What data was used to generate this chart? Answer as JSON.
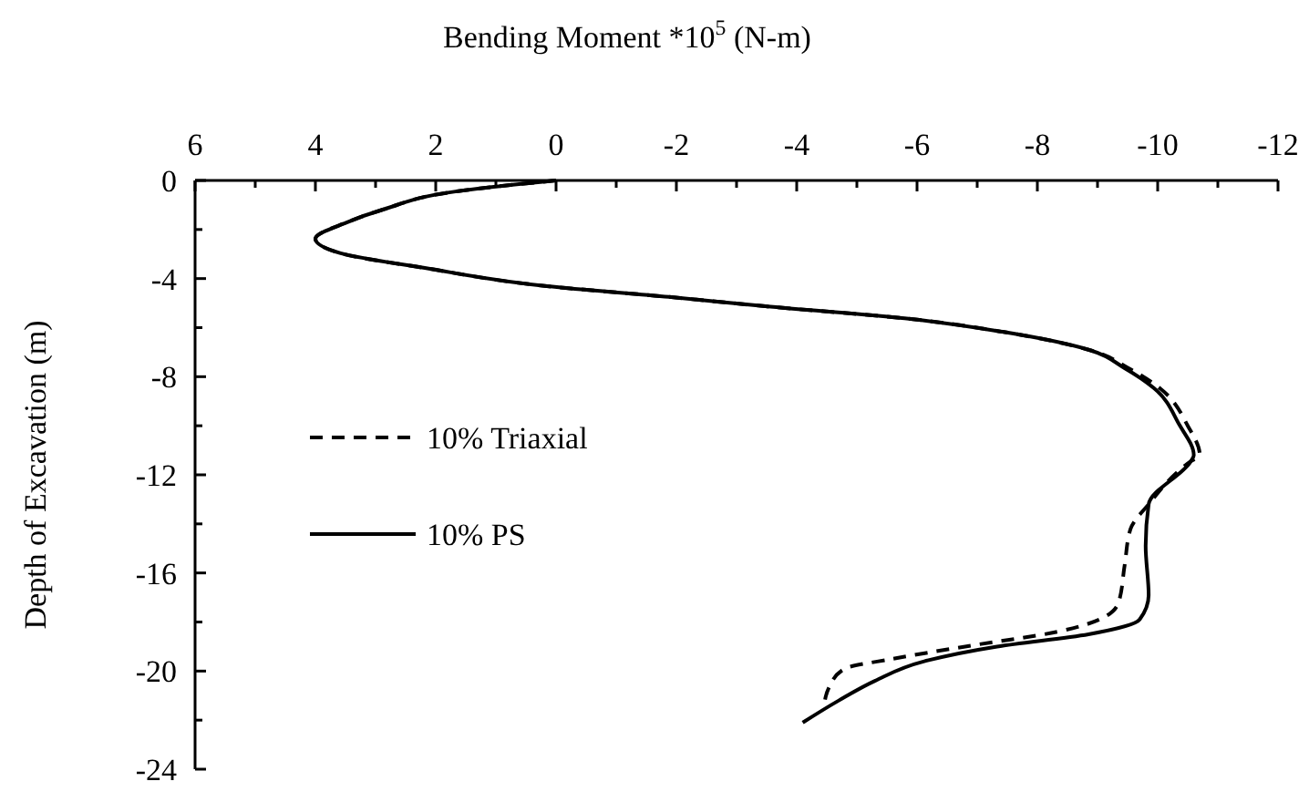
{
  "chart_data": {
    "type": "line",
    "xlabel": "Bending Moment *10$^{5}$ (N-m)",
    "ylabel": "Depth of Excavation (m)",
    "xlim": [
      6,
      -12
    ],
    "xticks": [
      6,
      4,
      2,
      0,
      -2,
      -4,
      -6,
      -8,
      -10,
      -12
    ],
    "ylim": [
      -24,
      0
    ],
    "yticks": [
      0,
      -4,
      -8,
      -12,
      -16,
      -20,
      -24
    ],
    "grid": false,
    "legend": "left",
    "marker": "none",
    "series": [
      {
        "name": "10% Triaxial",
        "color": "#000000",
        "line_style": "dashed",
        "x": [
          0,
          1.67,
          2.88,
          3.48,
          4.0,
          3.58,
          2.18,
          0.15,
          -1.88,
          -3.48,
          -5.9,
          -7.42,
          -8.85,
          -9.55,
          -10.05,
          -10.5,
          -10.7,
          -10.55,
          -9.85,
          -9.55,
          -9.45,
          -9.35,
          -9.03,
          -8.33,
          -6.8,
          -5.6,
          -4.8,
          -4.55,
          -4.45
        ],
        "values": [
          0,
          -0.45,
          -1.19,
          -1.71,
          -2.38,
          -2.97,
          -3.57,
          -4.31,
          -4.75,
          -5.13,
          -5.65,
          -6.17,
          -6.9,
          -7.7,
          -8.5,
          -10,
          -11.2,
          -11.45,
          -13.2,
          -14.2,
          -15.7,
          -17.2,
          -17.9,
          -18.4,
          -19.0,
          -19.5,
          -19.9,
          -20.6,
          -21.5
        ]
      },
      {
        "name": "10% PS",
        "color": "#000000",
        "line_style": "solid",
        "x": [
          0,
          1.67,
          2.88,
          3.48,
          4.0,
          3.58,
          2.18,
          0.15,
          -1.88,
          -3.48,
          -5.9,
          -7.42,
          -8.85,
          -9.45,
          -9.94,
          -10.36,
          -10.6,
          -10.55,
          -9.85,
          -9.8,
          -9.85,
          -9.7,
          -8.85,
          -7.33,
          -6.12,
          -5.3,
          -4.7,
          -4.1
        ],
        "values": [
          0,
          -0.45,
          -1.19,
          -1.71,
          -2.38,
          -2.97,
          -3.57,
          -4.31,
          -4.75,
          -5.13,
          -5.65,
          -6.17,
          -6.9,
          -7.65,
          -8.47,
          -9.96,
          -11.2,
          -11.45,
          -13.2,
          -14.9,
          -16.9,
          -17.9,
          -18.5,
          -19.0,
          -19.6,
          -20.4,
          -21.2,
          -22.1
        ]
      }
    ]
  }
}
